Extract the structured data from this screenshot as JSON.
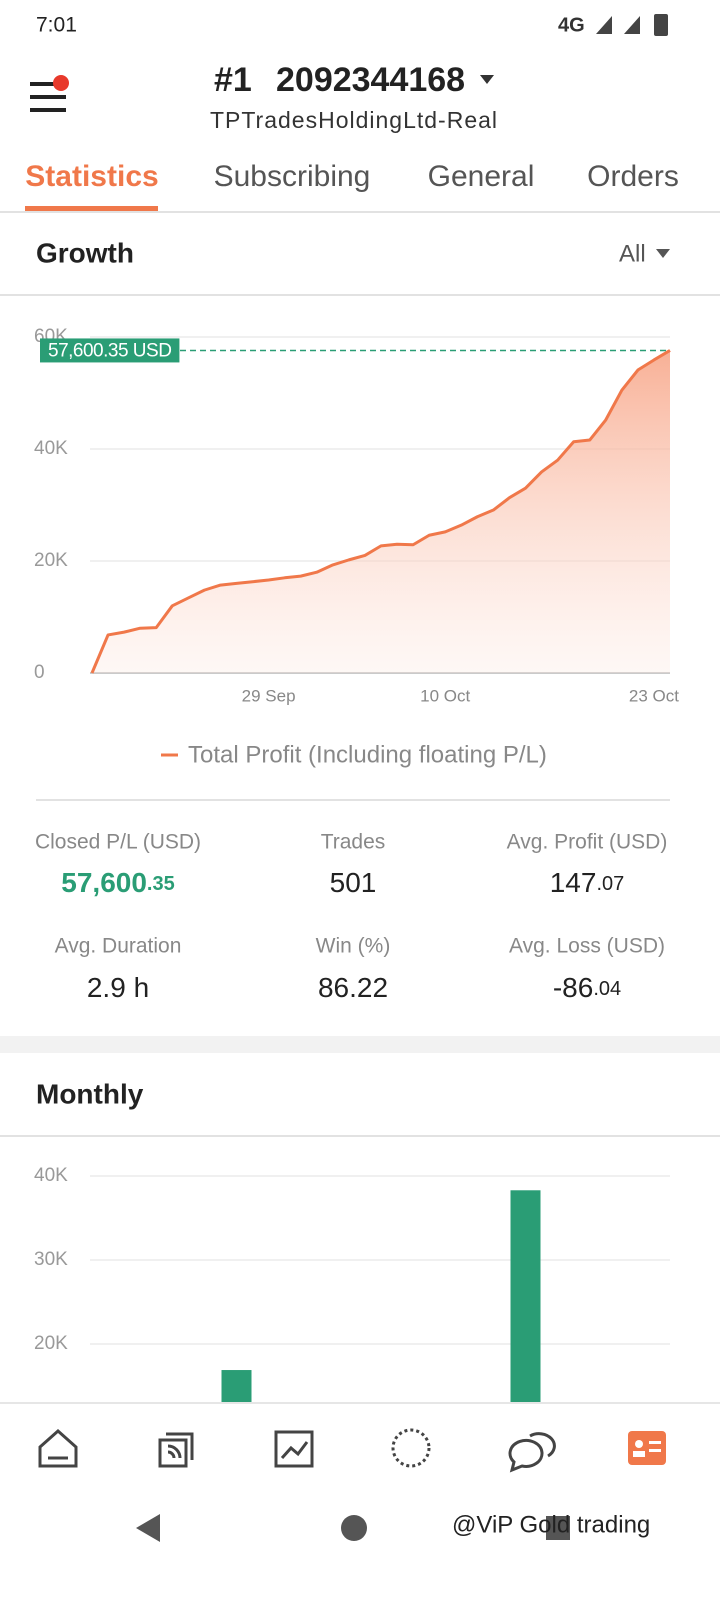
{
  "status": {
    "time": "7:01",
    "network": "4G"
  },
  "header": {
    "rank": "#1",
    "account": "2092344168",
    "server": "TPTradesHoldingLtd-Real"
  },
  "tabs": [
    "Statistics",
    "Subscribing",
    "General",
    "Orders"
  ],
  "growth": {
    "title": "Growth",
    "filter": "All",
    "chart": {
      "type": "line",
      "categories": [
        null,
        null,
        null,
        null,
        null,
        null,
        null,
        null,
        null,
        null,
        null,
        "29 Sep",
        null,
        null,
        null,
        null,
        null,
        null,
        null,
        null,
        null,
        null,
        "10 Oct",
        null,
        null,
        null,
        null,
        null,
        null,
        null,
        null,
        null,
        null,
        null,
        null,
        "23 Oct",
        null
      ],
      "series": [
        {
          "name": "Total Profit (Including floating P/L)",
          "color": "#f0784a",
          "values": [
            0,
            6800,
            7300,
            8000,
            8100,
            12000,
            13400,
            14800,
            15700,
            16000,
            16300,
            16600,
            17000,
            17300,
            18000,
            19300,
            20200,
            21000,
            22700,
            23000,
            22900,
            24600,
            25200,
            26400,
            27900,
            29100,
            31300,
            33000,
            35900,
            38000,
            41300,
            41600,
            45200,
            50500,
            54100,
            55900,
            57600.35
          ]
        }
      ],
      "ylim": [
        0,
        60000
      ],
      "yticks": [
        0,
        {
          "value": 20000,
          "label": "20K"
        },
        {
          "value": 40000,
          "label": "40K"
        },
        {
          "value": 60000,
          "label": "60K"
        }
      ],
      "grid": true,
      "reference_line": {
        "value": 57600.35,
        "label": "57,600.35 USD",
        "color": "#2a9d75"
      }
    }
  },
  "stats": [
    {
      "label": "Closed P/L (USD)",
      "value": "57,600",
      "fraction": ".35",
      "color": "#2a9d75"
    },
    {
      "label": "Trades",
      "value": "501"
    },
    {
      "label": "Avg. Profit (USD)",
      "value": "147",
      "fraction": ".07"
    },
    {
      "label": "Avg. Duration",
      "value": "2.9 h"
    },
    {
      "label": "Win (%)",
      "value": "86.22"
    },
    {
      "label": "Avg. Loss (USD)",
      "value": "-86",
      "fraction": ".04"
    }
  ],
  "monthly": {
    "title": "Monthly",
    "chart": {
      "type": "bar",
      "categories": [
        null,
        null
      ],
      "values": [
        16900,
        38300
      ],
      "color": "#2a9d75",
      "ylim": [
        0,
        40000
      ],
      "yticks": [
        {
          "value": 20000,
          "label": "20K"
        },
        {
          "value": 30000,
          "label": "30K"
        },
        {
          "value": 40000,
          "label": "40K"
        }
      ],
      "grid": true
    }
  },
  "watermark": "@ViP Gold trading"
}
